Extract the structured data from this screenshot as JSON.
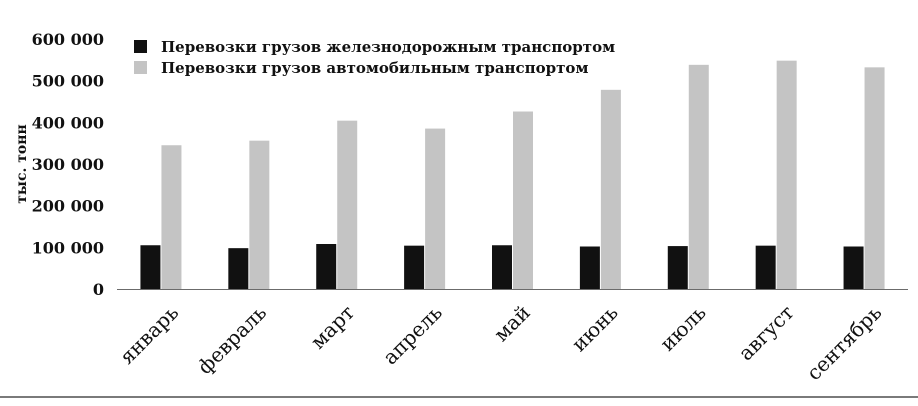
{
  "chart_data": {
    "type": "bar",
    "title": "",
    "xlabel": "",
    "ylabel": "тыс. тонн",
    "ylim": [
      0,
      600000
    ],
    "yticks": [
      0,
      100000,
      200000,
      300000,
      400000,
      500000,
      600000
    ],
    "ytick_labels": [
      "0",
      "100 000",
      "200 000",
      "300 000",
      "400 000",
      "500 000",
      "600 000"
    ],
    "grid": false,
    "legend_position": "top-left",
    "categories": [
      "январь",
      "февраль",
      "март",
      "апрель",
      "май",
      "июнь",
      "июль",
      "август",
      "сентябрь"
    ],
    "series": [
      {
        "name": "Перевозки грузов железнодорожным транспортом",
        "color": "#111111",
        "values": [
          105000,
          98000,
          108000,
          104000,
          105000,
          102000,
          103000,
          104000,
          102000
        ]
      },
      {
        "name": "Перевозки грузов автомобильным транспортом",
        "color": "#c4c4c4",
        "values": [
          345000,
          356000,
          404000,
          385000,
          426000,
          478000,
          538000,
          548000,
          532000
        ]
      }
    ]
  }
}
